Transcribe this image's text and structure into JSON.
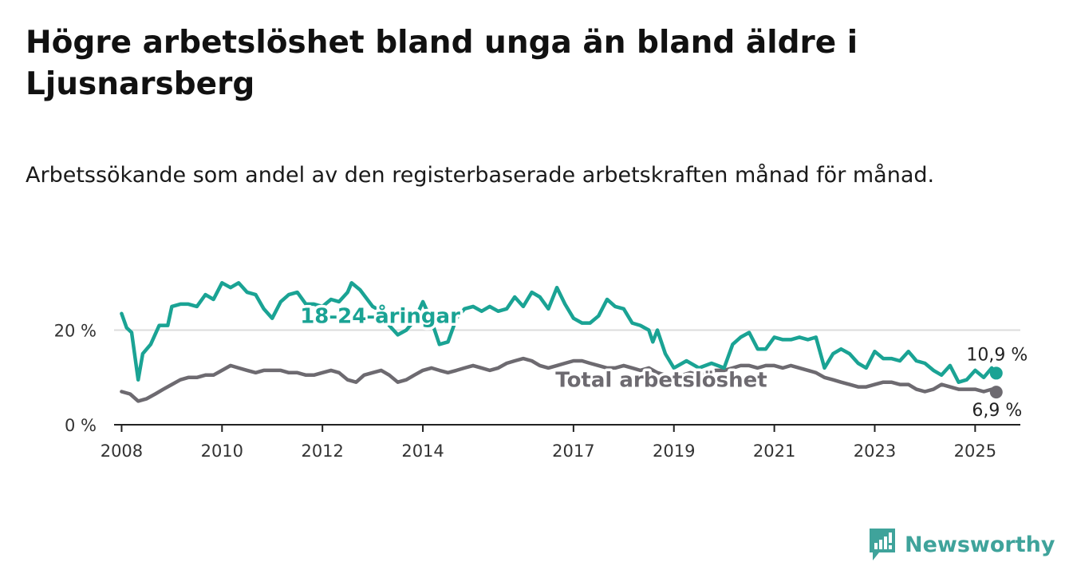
{
  "title": "Högre arbetslöshet bland unga än bland äldre i Ljusnarsberg",
  "subtitle": "Arbetssökande som andel av den registerbaserade arbetskraften månad för månad.",
  "brand": {
    "name": "Newsworthy",
    "icon": "newsworthy-logo-icon"
  },
  "colors": {
    "youth": "#1aa394",
    "total": "#6d6a70",
    "grid": "#dcdcdc",
    "axis": "#222222"
  },
  "chart_data": {
    "type": "line",
    "ylim": [
      0,
      30
    ],
    "y_ticks": [
      0,
      20
    ],
    "y_tick_labels": [
      "0 %",
      "20 %"
    ],
    "x_range": [
      2007.85,
      2025.9
    ],
    "x_ticks": [
      2008,
      2010,
      2012,
      2014,
      2017,
      2019,
      2021,
      2023,
      2025
    ],
    "x_tick_labels": [
      "2008",
      "2010",
      "2012",
      "2014",
      "2017",
      "2019",
      "2021",
      "2023",
      "2025"
    ],
    "grid": "horizontal",
    "series": [
      {
        "name": "18-24-åringar",
        "color": "#1aa394",
        "end_label": "10,9 %",
        "points": [
          [
            2008.0,
            23.5
          ],
          [
            2008.1,
            20.5
          ],
          [
            2008.2,
            19.5
          ],
          [
            2008.33,
            9.5
          ],
          [
            2008.42,
            15.0
          ],
          [
            2008.58,
            17.0
          ],
          [
            2008.75,
            21.0
          ],
          [
            2008.92,
            21.0
          ],
          [
            2009.0,
            25.0
          ],
          [
            2009.17,
            25.5
          ],
          [
            2009.33,
            25.5
          ],
          [
            2009.5,
            25.0
          ],
          [
            2009.67,
            27.5
          ],
          [
            2009.83,
            26.5
          ],
          [
            2010.0,
            30.0
          ],
          [
            2010.17,
            29.0
          ],
          [
            2010.33,
            30.0
          ],
          [
            2010.5,
            28.0
          ],
          [
            2010.67,
            27.5
          ],
          [
            2010.83,
            24.5
          ],
          [
            2011.0,
            22.5
          ],
          [
            2011.17,
            26.0
          ],
          [
            2011.33,
            27.5
          ],
          [
            2011.5,
            28.0
          ],
          [
            2011.67,
            25.5
          ],
          [
            2011.83,
            25.5
          ],
          [
            2012.0,
            25.0
          ],
          [
            2012.17,
            26.5
          ],
          [
            2012.33,
            26.0
          ],
          [
            2012.5,
            28.0
          ],
          [
            2012.58,
            30.0
          ],
          [
            2012.75,
            28.5
          ],
          [
            2013.0,
            25.0
          ],
          [
            2013.17,
            24.0
          ],
          [
            2013.33,
            21.0
          ],
          [
            2013.5,
            19.0
          ],
          [
            2013.67,
            20.0
          ],
          [
            2013.83,
            22.0
          ],
          [
            2014.0,
            26.0
          ],
          [
            2014.17,
            22.0
          ],
          [
            2014.33,
            17.0
          ],
          [
            2014.5,
            17.5
          ],
          [
            2014.67,
            22.5
          ],
          [
            2014.83,
            24.5
          ],
          [
            2015.0,
            25.0
          ],
          [
            2015.17,
            24.0
          ],
          [
            2015.33,
            25.0
          ],
          [
            2015.5,
            24.0
          ],
          [
            2015.67,
            24.5
          ],
          [
            2015.83,
            27.0
          ],
          [
            2016.0,
            25.0
          ],
          [
            2016.17,
            28.0
          ],
          [
            2016.33,
            27.0
          ],
          [
            2016.5,
            24.5
          ],
          [
            2016.67,
            29.0
          ],
          [
            2016.83,
            25.5
          ],
          [
            2017.0,
            22.5
          ],
          [
            2017.17,
            21.5
          ],
          [
            2017.33,
            21.5
          ],
          [
            2017.5,
            23.0
          ],
          [
            2017.67,
            26.5
          ],
          [
            2017.83,
            25.0
          ],
          [
            2018.0,
            24.5
          ],
          [
            2018.17,
            21.5
          ],
          [
            2018.33,
            21.0
          ],
          [
            2018.5,
            20.0
          ],
          [
            2018.58,
            17.5
          ],
          [
            2018.67,
            20.0
          ],
          [
            2018.83,
            15.0
          ],
          [
            2019.0,
            12.0
          ],
          [
            2019.25,
            13.5
          ],
          [
            2019.5,
            12.0
          ],
          [
            2019.75,
            13.0
          ],
          [
            2020.0,
            12.0
          ],
          [
            2020.17,
            17.0
          ],
          [
            2020.33,
            18.5
          ],
          [
            2020.5,
            19.5
          ],
          [
            2020.67,
            16.0
          ],
          [
            2020.83,
            16.0
          ],
          [
            2021.0,
            18.5
          ],
          [
            2021.17,
            18.0
          ],
          [
            2021.33,
            18.0
          ],
          [
            2021.5,
            18.5
          ],
          [
            2021.67,
            18.0
          ],
          [
            2021.83,
            18.5
          ],
          [
            2022.0,
            12.0
          ],
          [
            2022.17,
            15.0
          ],
          [
            2022.33,
            16.0
          ],
          [
            2022.5,
            15.0
          ],
          [
            2022.67,
            13.0
          ],
          [
            2022.83,
            12.0
          ],
          [
            2023.0,
            15.5
          ],
          [
            2023.17,
            14.0
          ],
          [
            2023.33,
            14.0
          ],
          [
            2023.5,
            13.5
          ],
          [
            2023.67,
            15.5
          ],
          [
            2023.83,
            13.5
          ],
          [
            2024.0,
            13.0
          ],
          [
            2024.17,
            11.5
          ],
          [
            2024.33,
            10.5
          ],
          [
            2024.5,
            12.5
          ],
          [
            2024.67,
            9.0
          ],
          [
            2024.83,
            9.5
          ],
          [
            2025.0,
            11.5
          ],
          [
            2025.17,
            10.0
          ],
          [
            2025.33,
            12.0
          ],
          [
            2025.42,
            10.9
          ]
        ]
      },
      {
        "name": "Total arbetslöshet",
        "color": "#6d6a70",
        "end_label": "6,9 %",
        "points": [
          [
            2008.0,
            7.0
          ],
          [
            2008.17,
            6.5
          ],
          [
            2008.33,
            5.0
          ],
          [
            2008.5,
            5.5
          ],
          [
            2008.67,
            6.5
          ],
          [
            2008.83,
            7.5
          ],
          [
            2009.0,
            8.5
          ],
          [
            2009.17,
            9.5
          ],
          [
            2009.33,
            10.0
          ],
          [
            2009.5,
            10.0
          ],
          [
            2009.67,
            10.5
          ],
          [
            2009.83,
            10.5
          ],
          [
            2010.0,
            11.5
          ],
          [
            2010.17,
            12.5
          ],
          [
            2010.33,
            12.0
          ],
          [
            2010.5,
            11.5
          ],
          [
            2010.67,
            11.0
          ],
          [
            2010.83,
            11.5
          ],
          [
            2011.0,
            11.5
          ],
          [
            2011.17,
            11.5
          ],
          [
            2011.33,
            11.0
          ],
          [
            2011.5,
            11.0
          ],
          [
            2011.67,
            10.5
          ],
          [
            2011.83,
            10.5
          ],
          [
            2012.0,
            11.0
          ],
          [
            2012.17,
            11.5
          ],
          [
            2012.33,
            11.0
          ],
          [
            2012.5,
            9.5
          ],
          [
            2012.67,
            9.0
          ],
          [
            2012.83,
            10.5
          ],
          [
            2013.0,
            11.0
          ],
          [
            2013.17,
            11.5
          ],
          [
            2013.33,
            10.5
          ],
          [
            2013.5,
            9.0
          ],
          [
            2013.67,
            9.5
          ],
          [
            2013.83,
            10.5
          ],
          [
            2014.0,
            11.5
          ],
          [
            2014.17,
            12.0
          ],
          [
            2014.33,
            11.5
          ],
          [
            2014.5,
            11.0
          ],
          [
            2014.67,
            11.5
          ],
          [
            2014.83,
            12.0
          ],
          [
            2015.0,
            12.5
          ],
          [
            2015.17,
            12.0
          ],
          [
            2015.33,
            11.5
          ],
          [
            2015.5,
            12.0
          ],
          [
            2015.67,
            13.0
          ],
          [
            2015.83,
            13.5
          ],
          [
            2016.0,
            14.0
          ],
          [
            2016.17,
            13.5
          ],
          [
            2016.33,
            12.5
          ],
          [
            2016.5,
            12.0
          ],
          [
            2016.67,
            12.5
          ],
          [
            2016.83,
            13.0
          ],
          [
            2017.0,
            13.5
          ],
          [
            2017.17,
            13.5
          ],
          [
            2017.33,
            13.0
          ],
          [
            2017.5,
            12.5
          ],
          [
            2017.67,
            12.0
          ],
          [
            2017.83,
            12.0
          ],
          [
            2018.0,
            12.5
          ],
          [
            2018.17,
            12.0
          ],
          [
            2018.33,
            11.5
          ],
          [
            2018.5,
            12.0
          ],
          [
            2018.67,
            11.0
          ],
          [
            2018.83,
            10.5
          ],
          [
            2019.0,
            10.0
          ],
          [
            2019.17,
            10.5
          ],
          [
            2019.33,
            11.0
          ],
          [
            2019.5,
            10.5
          ],
          [
            2019.67,
            11.0
          ],
          [
            2019.83,
            11.5
          ],
          [
            2020.0,
            11.5
          ],
          [
            2020.17,
            12.0
          ],
          [
            2020.33,
            12.5
          ],
          [
            2020.5,
            12.5
          ],
          [
            2020.67,
            12.0
          ],
          [
            2020.83,
            12.5
          ],
          [
            2021.0,
            12.5
          ],
          [
            2021.17,
            12.0
          ],
          [
            2021.33,
            12.5
          ],
          [
            2021.5,
            12.0
          ],
          [
            2021.67,
            11.5
          ],
          [
            2021.83,
            11.0
          ],
          [
            2022.0,
            10.0
          ],
          [
            2022.17,
            9.5
          ],
          [
            2022.33,
            9.0
          ],
          [
            2022.5,
            8.5
          ],
          [
            2022.67,
            8.0
          ],
          [
            2022.83,
            8.0
          ],
          [
            2023.0,
            8.5
          ],
          [
            2023.17,
            9.0
          ],
          [
            2023.33,
            9.0
          ],
          [
            2023.5,
            8.5
          ],
          [
            2023.67,
            8.5
          ],
          [
            2023.83,
            7.5
          ],
          [
            2024.0,
            7.0
          ],
          [
            2024.17,
            7.5
          ],
          [
            2024.33,
            8.5
          ],
          [
            2024.5,
            8.0
          ],
          [
            2024.67,
            7.5
          ],
          [
            2024.83,
            7.5
          ],
          [
            2025.0,
            7.5
          ],
          [
            2025.17,
            7.0
          ],
          [
            2025.33,
            7.5
          ],
          [
            2025.42,
            6.9
          ]
        ]
      }
    ]
  }
}
